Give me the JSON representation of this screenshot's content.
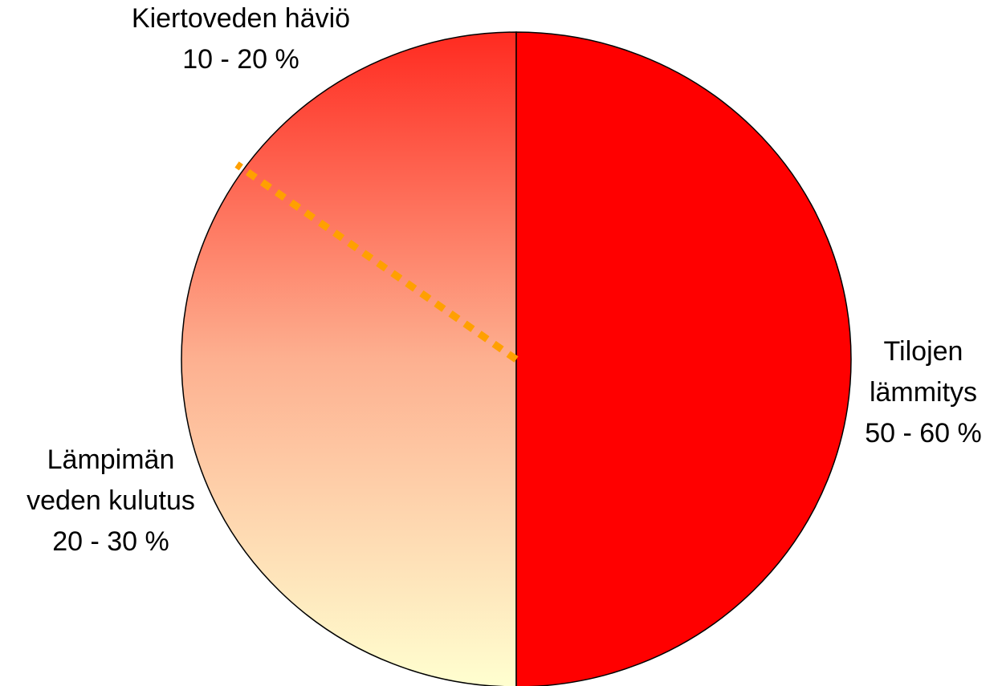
{
  "segments": [
    {
      "lines": [
        "Kiertoveden häviö",
        "10 - 20 %"
      ]
    },
    {
      "lines": [
        "Tilojen",
        "lämmitys",
        "50 - 60 %"
      ]
    },
    {
      "lines": [
        "Lämpimän",
        "veden kulutus",
        "20 - 30 %"
      ]
    }
  ]
}
